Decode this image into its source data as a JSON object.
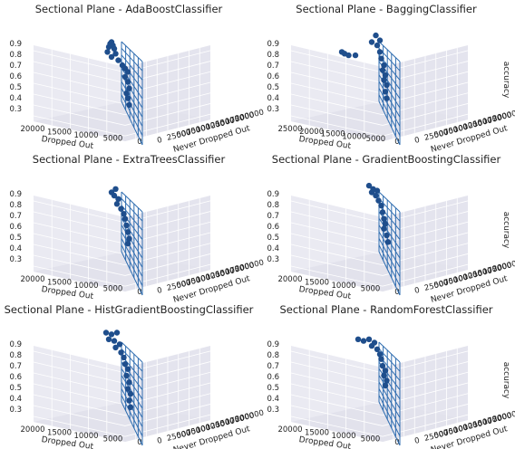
{
  "chart_data": [
    {
      "type": "scatter",
      "title": "Sectional Plane - AdaBoostClassifier",
      "xlabel": "Dropped Out",
      "ylabel": "Never Dropped Out",
      "zlabel": "accuracy",
      "x_ticks": [
        "20000",
        "15000",
        "10000",
        "5000",
        "0"
      ],
      "y_ticks": [
        "0",
        "25000",
        "50000",
        "75000",
        "100000",
        "125000",
        "150000",
        "175000",
        "200000"
      ],
      "z_ticks": [
        "0.3",
        "0.4",
        "0.5",
        "0.6",
        "0.7",
        "0.8",
        "0.9"
      ],
      "z_range": [
        0.25,
        0.95
      ],
      "points": [
        {
          "y": 0.9,
          "z": 0.86
        },
        {
          "y": 0.89,
          "z": 0.85
        },
        {
          "y": 0.91,
          "z": 0.84
        },
        {
          "y": 0.88,
          "z": 0.83
        },
        {
          "y": 0.92,
          "z": 0.82
        },
        {
          "y": 0.87,
          "z": 0.8
        },
        {
          "y": 0.93,
          "z": 0.79
        },
        {
          "y": 0.9,
          "z": 0.77
        },
        {
          "y": 0.95,
          "z": 0.75
        },
        {
          "y": 0.98,
          "z": 0.72
        },
        {
          "y": 1.0,
          "z": 0.7
        },
        {
          "y": 1.02,
          "z": 0.68
        },
        {
          "y": 1.0,
          "z": 0.65
        },
        {
          "y": 1.02,
          "z": 0.62
        },
        {
          "y": 1.03,
          "z": 0.58
        },
        {
          "y": 1.01,
          "z": 0.55
        },
        {
          "y": 1.02,
          "z": 0.52
        },
        {
          "y": 1.03,
          "z": 0.48
        }
      ]
    },
    {
      "type": "scatter",
      "title": "Sectional Plane - BaggingClassifier",
      "xlabel": "Dropped Out",
      "ylabel": "Never Dropped Out",
      "zlabel": "accuracy",
      "x_ticks": [
        "25000",
        "20000",
        "15000",
        "10000",
        "5000",
        "0"
      ],
      "y_ticks": [
        "0",
        "25000",
        "50000",
        "75000",
        "100000",
        "125000",
        "150000",
        "175000",
        "200000"
      ],
      "z_ticks": [
        "0.3",
        "0.4",
        "0.5",
        "0.6",
        "0.7",
        "0.8",
        "0.9"
      ],
      "z_range": [
        0.25,
        0.95
      ],
      "points": [
        {
          "y": 0.7,
          "z": 0.8
        },
        {
          "y": 0.72,
          "z": 0.79
        },
        {
          "y": 0.75,
          "z": 0.78
        },
        {
          "y": 0.8,
          "z": 0.78
        },
        {
          "y": 0.95,
          "z": 0.9
        },
        {
          "y": 0.98,
          "z": 0.87
        },
        {
          "y": 0.92,
          "z": 0.86
        },
        {
          "y": 0.96,
          "z": 0.84
        },
        {
          "y": 0.98,
          "z": 0.8
        },
        {
          "y": 0.99,
          "z": 0.76
        },
        {
          "y": 1.01,
          "z": 0.72
        },
        {
          "y": 1.0,
          "z": 0.69
        },
        {
          "y": 1.02,
          "z": 0.66
        },
        {
          "y": 1.01,
          "z": 0.63
        },
        {
          "y": 1.03,
          "z": 0.6
        },
        {
          "y": 1.02,
          "z": 0.56
        },
        {
          "y": 1.03,
          "z": 0.52
        }
      ]
    },
    {
      "type": "scatter",
      "title": "Sectional Plane - ExtraTreesClassifier",
      "xlabel": "Dropped Out",
      "ylabel": "Never Dropped Out",
      "zlabel": "accuracy",
      "x_ticks": [
        "20000",
        "15000",
        "10000",
        "5000",
        "0"
      ],
      "y_ticks": [
        "0",
        "25000",
        "50000",
        "75000",
        "100000",
        "125000",
        "150000",
        "175000",
        "200000"
      ],
      "z_ticks": [
        "0.3",
        "0.4",
        "0.5",
        "0.6",
        "0.7",
        "0.8",
        "0.9"
      ],
      "z_range": [
        0.25,
        0.95
      ],
      "points": [
        {
          "y": 0.9,
          "z": 0.86
        },
        {
          "y": 0.93,
          "z": 0.88
        },
        {
          "y": 0.92,
          "z": 0.84
        },
        {
          "y": 0.95,
          "z": 0.82
        },
        {
          "y": 0.94,
          "z": 0.79
        },
        {
          "y": 0.97,
          "z": 0.76
        },
        {
          "y": 0.99,
          "z": 0.73
        },
        {
          "y": 1.0,
          "z": 0.7
        },
        {
          "y": 1.01,
          "z": 0.66
        },
        {
          "y": 1.02,
          "z": 0.62
        },
        {
          "y": 1.03,
          "z": 0.58
        },
        {
          "y": 1.02,
          "z": 0.55
        }
      ]
    },
    {
      "type": "scatter",
      "title": "Sectional Plane - GradientBoostingClassifier",
      "xlabel": "Dropped Out",
      "ylabel": "Never Dropped Out",
      "zlabel": "accuracy",
      "x_ticks": [
        "20000",
        "15000",
        "10000",
        "5000",
        "0"
      ],
      "y_ticks": [
        "0",
        "25000",
        "50000",
        "75000",
        "100000",
        "125000",
        "150000",
        "175000",
        "200000"
      ],
      "z_ticks": [
        "0.3",
        "0.4",
        "0.5",
        "0.6",
        "0.7",
        "0.8",
        "0.9"
      ],
      "z_range": [
        0.25,
        0.95
      ],
      "points": [
        {
          "y": 0.9,
          "z": 0.9
        },
        {
          "y": 0.93,
          "z": 0.88
        },
        {
          "y": 0.96,
          "z": 0.87
        },
        {
          "y": 0.92,
          "z": 0.86
        },
        {
          "y": 0.95,
          "z": 0.84
        },
        {
          "y": 0.97,
          "z": 0.81
        },
        {
          "y": 0.99,
          "z": 0.78
        },
        {
          "y": 1.0,
          "z": 0.74
        },
        {
          "y": 1.01,
          "z": 0.7
        },
        {
          "y": 1.02,
          "z": 0.67
        },
        {
          "y": 1.01,
          "z": 0.64
        },
        {
          "y": 1.03,
          "z": 0.6
        },
        {
          "y": 1.04,
          "z": 0.56
        }
      ]
    },
    {
      "type": "scatter",
      "title": "Sectional Plane - HistGradientBoostingClassifier",
      "xlabel": "Dropped Out",
      "ylabel": "Never Dropped Out",
      "zlabel": "accuracy",
      "x_ticks": [
        "20000",
        "15000",
        "10000",
        "5000",
        "0"
      ],
      "y_ticks": [
        "0",
        "25000",
        "50000",
        "75000",
        "100000",
        "125000",
        "150000",
        "175000",
        "200000"
      ],
      "z_ticks": [
        "0.3",
        "0.4",
        "0.5",
        "0.6",
        "0.7",
        "0.8",
        "0.9"
      ],
      "z_range": [
        0.25,
        0.95
      ],
      "points": [
        {
          "y": 0.86,
          "z": 0.92
        },
        {
          "y": 0.9,
          "z": 0.91
        },
        {
          "y": 0.94,
          "z": 0.92
        },
        {
          "y": 0.88,
          "z": 0.88
        },
        {
          "y": 0.92,
          "z": 0.87
        },
        {
          "y": 0.96,
          "z": 0.85
        },
        {
          "y": 0.93,
          "z": 0.83
        },
        {
          "y": 0.97,
          "z": 0.8
        },
        {
          "y": 0.99,
          "z": 0.77
        },
        {
          "y": 1.0,
          "z": 0.73
        },
        {
          "y": 1.02,
          "z": 0.7
        },
        {
          "y": 1.01,
          "z": 0.66
        },
        {
          "y": 1.03,
          "z": 0.62
        },
        {
          "y": 1.02,
          "z": 0.58
        },
        {
          "y": 1.04,
          "z": 0.55
        },
        {
          "y": 1.03,
          "z": 0.51
        },
        {
          "y": 1.04,
          "z": 0.47
        }
      ]
    },
    {
      "type": "scatter",
      "title": "Sectional Plane - RandomForestClassifier",
      "xlabel": "Dropped Out",
      "ylabel": "Never Dropped Out",
      "zlabel": "accuracy",
      "x_ticks": [
        "20000",
        "15000",
        "10000",
        "5000",
        "0"
      ],
      "y_ticks": [
        "0",
        "25000",
        "50000",
        "75000",
        "100000",
        "125000",
        "150000",
        "175000",
        "200000"
      ],
      "z_ticks": [
        "0.3",
        "0.4",
        "0.5",
        "0.6",
        "0.7",
        "0.8",
        "0.9"
      ],
      "z_range": [
        0.25,
        0.95
      ],
      "points": [
        {
          "y": 0.82,
          "z": 0.88
        },
        {
          "y": 0.86,
          "z": 0.87
        },
        {
          "y": 0.9,
          "z": 0.88
        },
        {
          "y": 0.94,
          "z": 0.86
        },
        {
          "y": 0.92,
          "z": 0.84
        },
        {
          "y": 0.96,
          "z": 0.82
        },
        {
          "y": 0.98,
          "z": 0.79
        },
        {
          "y": 0.99,
          "z": 0.76
        },
        {
          "y": 1.0,
          "z": 0.72
        },
        {
          "y": 1.02,
          "z": 0.69
        },
        {
          "y": 1.01,
          "z": 0.66
        },
        {
          "y": 1.03,
          "z": 0.63
        },
        {
          "y": 1.02,
          "z": 0.6
        }
      ]
    }
  ],
  "colors": {
    "background": "#ffffff",
    "pane": "#eaeaf2",
    "grid": "#ffffff",
    "marker": "#1f4e8c",
    "plane": "#2f6db0"
  }
}
